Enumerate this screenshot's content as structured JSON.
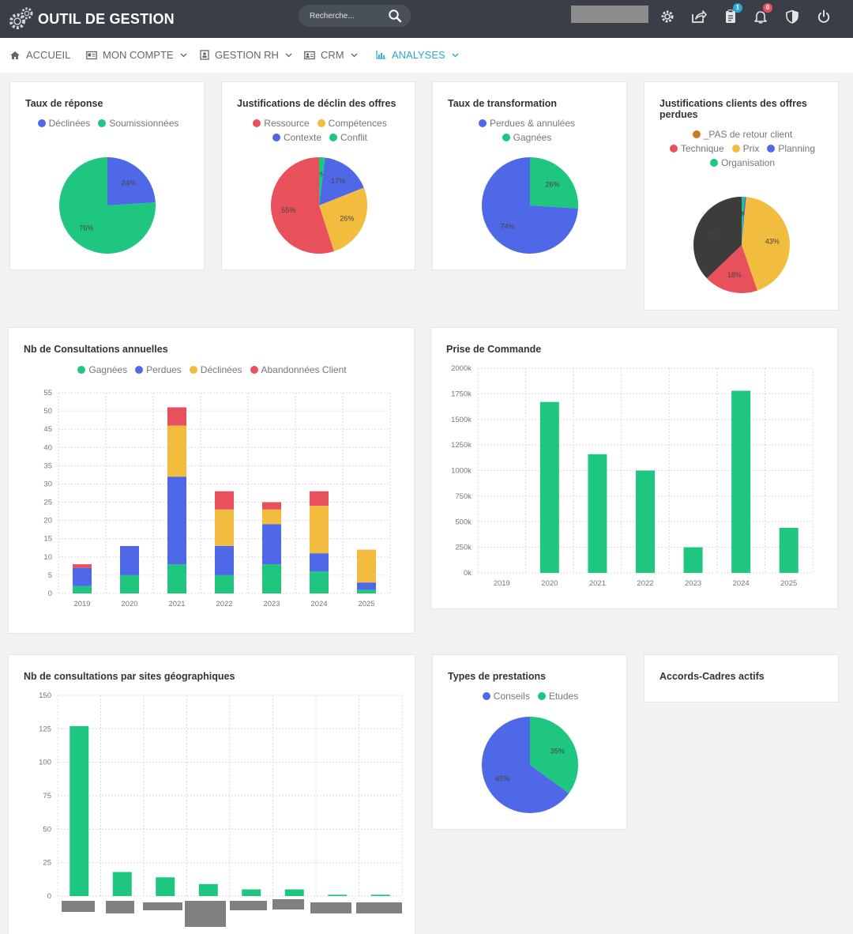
{
  "app": {
    "title": "OUTIL DE GESTION"
  },
  "search": {
    "placeholder": "Recherche..."
  },
  "toolbar": {
    "icons": [
      "gear-icon",
      "share-icon",
      "clipboard-icon",
      "bell-icon",
      "shield-icon",
      "power-icon"
    ],
    "clipboard_badge": "1",
    "bell_badge": "0"
  },
  "nav": {
    "items": [
      {
        "label": "ACCUEIL",
        "icon": "home-icon"
      },
      {
        "label": "MON COMPTE",
        "icon": "id-card-icon"
      },
      {
        "label": "GESTION RH",
        "icon": "badge-icon"
      },
      {
        "label": "CRM",
        "icon": "contact-card-icon"
      },
      {
        "label": "ANALYSES",
        "icon": "bar-chart-icon"
      }
    ]
  },
  "colors": {
    "green": "#1ec680",
    "blue": "#4f68e8",
    "yellow": "#f2bd3e",
    "red": "#e8505b",
    "orange": "#c97e1c",
    "dark": "#3c3c3c",
    "gray": "#808080",
    "accent": "#2aa8d8",
    "topbar": "#3a3f47"
  },
  "cards": {
    "taux_reponse": {
      "title": "Taux de réponse",
      "legend": [
        "Déclinées",
        "Soumissionnées"
      ]
    },
    "justif_declin": {
      "title": "Justifications de déclin des offres",
      "legend": [
        "Ressource",
        "Compétences",
        "Contexte",
        "Conflit"
      ]
    },
    "taux_transfo": {
      "title": "Taux de transformation",
      "legend": [
        "Perdues & annulées",
        "Gagnées"
      ]
    },
    "justif_clients": {
      "title": "Justifications clients des offres perdues",
      "legend": [
        "_PAS de retour client",
        "Technique",
        "Prix",
        "Planning",
        "Organisation"
      ]
    },
    "consultations": {
      "title": "Nb de Consultations annuelles",
      "legend": [
        "Gagnées",
        "Perdues",
        "Déclinées",
        "Abandonnées Client"
      ]
    },
    "commande": {
      "title": "Prise de Commande"
    },
    "sites": {
      "title": "Nb de consultations par sites géographiques"
    },
    "prestations": {
      "title": "Types de prestations",
      "legend": [
        "Conseils",
        "Etudes"
      ]
    },
    "accords": {
      "title": "Accords-Cadres actifs"
    }
  },
  "chart_data": [
    {
      "id": "taux_reponse",
      "type": "pie",
      "title": "Taux de réponse",
      "slices": [
        {
          "label": "Déclinées",
          "value": 24,
          "text": "24%",
          "color": "#4f68e8"
        },
        {
          "label": "Soumissionnées",
          "value": 76,
          "text": "76%",
          "color": "#1ec680"
        }
      ]
    },
    {
      "id": "justif_declin",
      "type": "pie",
      "title": "Justifications de déclin des offres",
      "slices": [
        {
          "label": "Conflit",
          "value": 2,
          "text": "2%",
          "color": "#1ec680"
        },
        {
          "label": "Contexte",
          "value": 17,
          "text": "17%",
          "color": "#4f68e8"
        },
        {
          "label": "Compétences",
          "value": 26,
          "text": "26%",
          "color": "#f2bd3e"
        },
        {
          "label": "Ressource",
          "value": 55,
          "text": "55%",
          "color": "#e8505b"
        }
      ]
    },
    {
      "id": "taux_transfo",
      "type": "pie",
      "title": "Taux de transformation",
      "slices": [
        {
          "label": "Gagnées",
          "value": 26,
          "text": "26%",
          "color": "#1ec680"
        },
        {
          "label": "Perdues & annulées",
          "value": 74,
          "text": "74%",
          "color": "#4f68e8"
        }
      ]
    },
    {
      "id": "justif_clients",
      "type": "pie",
      "title": "Justifications clients des offres perdues",
      "slices": [
        {
          "label": "Organisation",
          "value": 1,
          "text": "1%",
          "color": "#1ec680"
        },
        {
          "label": "Planning",
          "value": 0.5,
          "text": "0%",
          "color": "#4f68e8"
        },
        {
          "label": "Prix",
          "value": 43,
          "text": "43%",
          "color": "#f2bd3e"
        },
        {
          "label": "Technique",
          "value": 18,
          "text": "18%",
          "color": "#e8505b"
        },
        {
          "label": "_PAS de retour client",
          "value": 37,
          "text": "37%",
          "color": "#3c3c3c"
        }
      ]
    },
    {
      "id": "consultations",
      "type": "bar",
      "title": "Nb de Consultations annuelles",
      "stacked": true,
      "categories": [
        "2019",
        "2020",
        "2021",
        "2022",
        "2023",
        "2024",
        "2025"
      ],
      "series": [
        {
          "name": "Gagnées",
          "color": "#1ec680",
          "values": [
            2,
            5,
            8,
            5,
            8,
            6,
            1
          ]
        },
        {
          "name": "Perdues",
          "color": "#4f68e8",
          "values": [
            5,
            8,
            24,
            8,
            11,
            5,
            2
          ]
        },
        {
          "name": "Déclinées",
          "color": "#f2bd3e",
          "values": [
            0,
            0,
            14,
            10,
            4,
            13,
            9
          ]
        },
        {
          "name": "Abandonnées Client",
          "color": "#e8505b",
          "values": [
            1,
            0,
            5,
            5,
            2,
            4,
            0
          ]
        }
      ],
      "ylim": [
        0,
        55
      ],
      "yticks": [
        "0",
        "5",
        "10",
        "15",
        "20",
        "25",
        "30",
        "35",
        "40",
        "45",
        "50",
        "55"
      ],
      "grid": true
    },
    {
      "id": "commande",
      "type": "bar",
      "title": "Prise de Commande",
      "categories": [
        "2019",
        "2020",
        "2021",
        "2022",
        "2023",
        "2024",
        "2025"
      ],
      "values": [
        0,
        1670000,
        1160000,
        1000000,
        250000,
        1780000,
        440000
      ],
      "ylim": [
        0,
        2000000
      ],
      "yticks": [
        "0k",
        "250k",
        "500k",
        "750k",
        "1000k",
        "1250k",
        "1500k",
        "1750k",
        "2000k"
      ],
      "grid": true
    },
    {
      "id": "sites",
      "type": "bar",
      "title": "Nb de consultations par sites géographiques",
      "values": [
        127,
        18,
        14,
        9,
        5,
        5,
        1,
        1
      ],
      "ylim": [
        0,
        150
      ],
      "yticks": [
        "0",
        "25",
        "50",
        "75",
        "100",
        "125",
        "150"
      ],
      "grid": true
    },
    {
      "id": "prestations",
      "type": "pie",
      "title": "Types de prestations",
      "slices": [
        {
          "label": "Etudes",
          "value": 35,
          "text": "35%",
          "color": "#1ec680"
        },
        {
          "label": "Conseils",
          "value": 65,
          "text": "65%",
          "color": "#4f68e8"
        }
      ]
    }
  ]
}
